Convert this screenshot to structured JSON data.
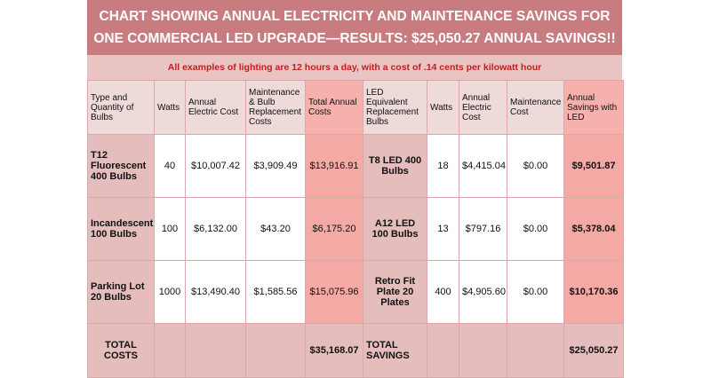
{
  "title": {
    "line1": "CHART SHOWING ANNUAL ELECTRICITY AND MAINTENANCE SAVINGS FOR",
    "line2": "ONE COMMERCIAL LED UPGRADE—RESULTS: $25,050.27 ANNUAL SAVINGS!!"
  },
  "note": "All examples of lighting are 12 hours a day, with a cost of .14 cents per kilowatt hour",
  "headers": {
    "type": "Type and Quantity of Bulbs",
    "watts": "Watts",
    "annual_cost": "Annual Electric Cost",
    "maintenance": "Maintenance & Bulb Replacement Costs",
    "total_annual": "Total Annual Costs",
    "led_equiv": "LED Equivalent Replacement Bulbs",
    "led_watts": "Watts",
    "led_annual": "Annual Electric Cost",
    "led_maint": "Maintenance Cost",
    "savings": "Annual Savings with LED"
  },
  "rows": [
    {
      "type": "T12 Fluorescent 400 Bulbs",
      "watts": "40",
      "annual": "$10,007.42",
      "maint": "$3,909.49",
      "total": "$13,916.91",
      "led": "T8 LED 400 Bulbs",
      "led_watts": "18",
      "led_annual": "$4,415.04",
      "led_maint": "$0.00",
      "savings": "$9,501.87"
    },
    {
      "type": "Incandescent 100 Bulbs",
      "watts": "100",
      "annual": "$6,132.00",
      "maint": "$43.20",
      "total": "$6,175.20",
      "led": "A12 LED 100 Bulbs",
      "led_watts": "13",
      "led_annual": "$797.16",
      "led_maint": "$0.00",
      "savings": "$5,378.04"
    },
    {
      "type": "Parking Lot 20 Bulbs",
      "watts": "1000",
      "annual": "$13,490.40",
      "maint": "$1,585.56",
      "total": "$15,075.96",
      "led": "Retro Fit Plate 20 Plates",
      "led_watts": "400",
      "led_annual": "$4,905.60",
      "led_maint": "$0.00",
      "savings": "$10,170.36"
    }
  ],
  "totals": {
    "costs_label": "TOTAL COSTS",
    "costs_value": "$35,168.07",
    "savings_label": "TOTAL SAVINGS",
    "savings_value": "$25,050.27"
  }
}
